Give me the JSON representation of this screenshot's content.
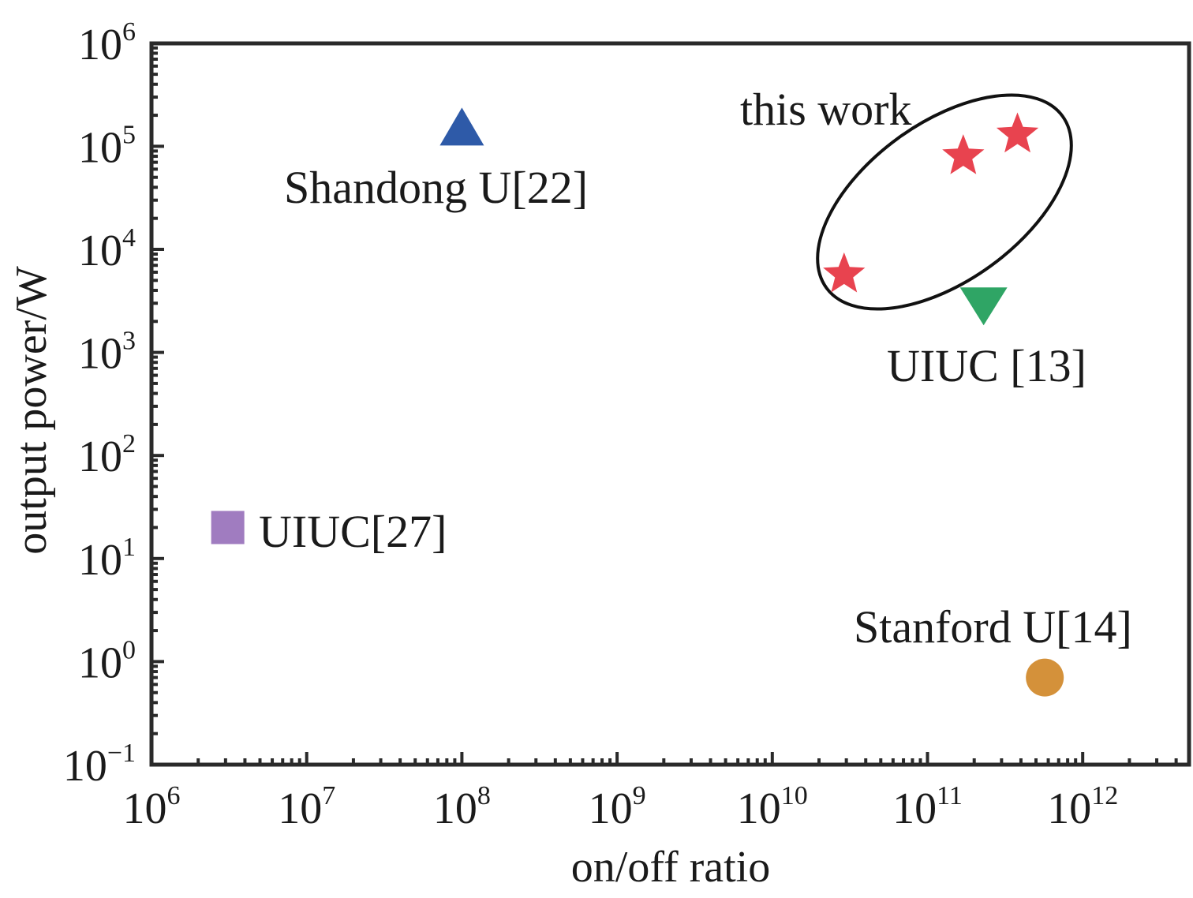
{
  "chart_data": {
    "type": "scatter",
    "title": "",
    "xlabel": "on/off ratio",
    "ylabel": "output power/W",
    "xscale": "log",
    "yscale": "log",
    "xlim_exp": [
      6,
      12.7
    ],
    "ylim_exp": [
      -1,
      6
    ],
    "x_ticks": [
      {
        "base": "10",
        "exp": "6",
        "value_exp": 6
      },
      {
        "base": "10",
        "exp": "7",
        "value_exp": 7
      },
      {
        "base": "10",
        "exp": "8",
        "value_exp": 8
      },
      {
        "base": "10",
        "exp": "9",
        "value_exp": 9
      },
      {
        "base": "10",
        "exp": "10",
        "value_exp": 10
      },
      {
        "base": "10",
        "exp": "11",
        "value_exp": 11
      },
      {
        "base": "10",
        "exp": "12",
        "value_exp": 12
      }
    ],
    "y_ticks": [
      {
        "base": "10",
        "exp": "−1",
        "value_exp": -1
      },
      {
        "base": "10",
        "exp": "0",
        "value_exp": 0
      },
      {
        "base": "10",
        "exp": "1",
        "value_exp": 1
      },
      {
        "base": "10",
        "exp": "2",
        "value_exp": 2
      },
      {
        "base": "10",
        "exp": "3",
        "value_exp": 3
      },
      {
        "base": "10",
        "exp": "4",
        "value_exp": 4
      },
      {
        "base": "10",
        "exp": "5",
        "value_exp": 5
      },
      {
        "base": "10",
        "exp": "6",
        "value_exp": 6
      }
    ],
    "series": [
      {
        "name": "this work",
        "marker": "star",
        "color": "#e8434f",
        "points": [
          {
            "x": 29000000000.0,
            "y": 5700
          },
          {
            "x": 170000000000.0,
            "y": 80000
          },
          {
            "x": 380000000000.0,
            "y": 130000
          }
        ]
      },
      {
        "name": "Shandong U[22]",
        "marker": "triangle-up",
        "color": "#2e5aa8",
        "points": [
          {
            "x": 100000000.0,
            "y": 150000
          }
        ]
      },
      {
        "name": "UIUC [13]",
        "marker": "triangle-down",
        "color": "#2fa565",
        "points": [
          {
            "x": 230000000000.0,
            "y": 2800
          }
        ]
      },
      {
        "name": "UIUC[27]",
        "marker": "square",
        "color": "#a07cc0",
        "points": [
          {
            "x": 3100000.0,
            "y": 20
          }
        ]
      },
      {
        "name": "Stanford U[14]",
        "marker": "circle",
        "color": "#d4913a",
        "points": [
          {
            "x": 570000000000.0,
            "y": 0.7
          }
        ]
      }
    ],
    "annotations": [
      {
        "text": "this work",
        "type": "ellipse-group"
      },
      {
        "text": "Shandong U[22]"
      },
      {
        "text": "UIUC [13]"
      },
      {
        "text": "UIUC[27]"
      },
      {
        "text": "Stanford U[14]"
      }
    ]
  }
}
